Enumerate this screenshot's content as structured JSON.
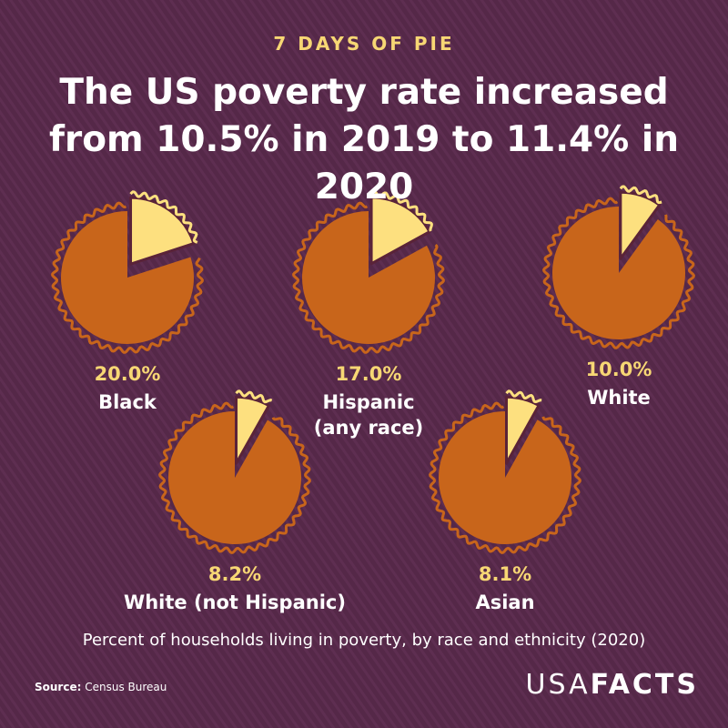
{
  "kicker": "7 DAYS OF PIE",
  "title": "The US poverty rate increased from 10.5% in 2019 to 11.4% in 2020",
  "subtitle": "Percent of households living in poverty, by race and ethnicity (2020)",
  "source_label": "Source:",
  "source": "Census Bureau",
  "brand": [
    "USA",
    "FACTS"
  ],
  "chart_data": [
    {
      "type": "pie",
      "categories": [
        "Black"
      ],
      "values": [
        20.0
      ],
      "value_labels": [
        "20.0%"
      ],
      "color": "#fde07f",
      "rest_color": "#c8651b"
    },
    {
      "type": "pie",
      "categories": [
        "Hispanic (any race)"
      ],
      "values": [
        17.0
      ],
      "value_labels": [
        "17.0%"
      ],
      "color": "#fde07f",
      "rest_color": "#c8651b"
    },
    {
      "type": "pie",
      "categories": [
        "White"
      ],
      "values": [
        10.0
      ],
      "value_labels": [
        "10.0%"
      ],
      "color": "#fde07f",
      "rest_color": "#c8651b"
    },
    {
      "type": "pie",
      "categories": [
        "White (not Hispanic)"
      ],
      "values": [
        8.2
      ],
      "value_labels": [
        "8.2%"
      ],
      "color": "#fde07f",
      "rest_color": "#c8651b"
    },
    {
      "type": "pie",
      "categories": [
        "Asian"
      ],
      "values": [
        8.1
      ],
      "value_labels": [
        "8.1%"
      ],
      "color": "#fde07f",
      "rest_color": "#c8651b"
    }
  ]
}
